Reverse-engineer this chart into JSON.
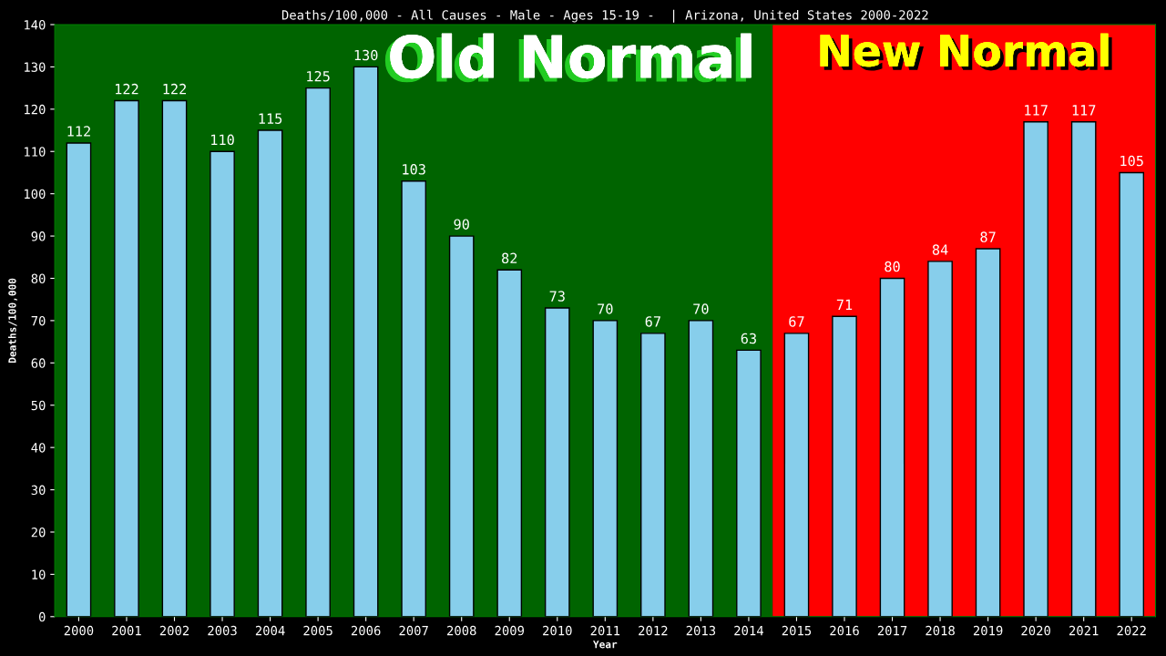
{
  "chart_data": {
    "type": "bar",
    "title": "Deaths/100,000 - All Causes - Male - Ages 15-19 -  | Arizona, United States 2000-2022",
    "xlabel": "Year",
    "ylabel": "Deaths/100,000",
    "categories": [
      "2000",
      "2001",
      "2002",
      "2003",
      "2004",
      "2005",
      "2006",
      "2007",
      "2008",
      "2009",
      "2010",
      "2011",
      "2012",
      "2013",
      "2014",
      "2015",
      "2016",
      "2017",
      "2018",
      "2019",
      "2020",
      "2021",
      "2022"
    ],
    "values": [
      112,
      122,
      122,
      110,
      115,
      125,
      130,
      103,
      90,
      82,
      73,
      70,
      67,
      70,
      63,
      67,
      71,
      80,
      84,
      87,
      117,
      117,
      105
    ],
    "color": "#87ceeb",
    "data_labels": true,
    "ylim": [
      0,
      140
    ],
    "yticks": [
      0,
      10,
      20,
      30,
      40,
      50,
      60,
      70,
      80,
      90,
      100,
      110,
      120,
      130,
      140
    ],
    "grid": false,
    "legend": false,
    "bands": [
      {
        "axis": "x",
        "from": "2000",
        "to": "2014",
        "label": "Old Normal",
        "color": "#006400"
      },
      {
        "axis": "x",
        "from": "2015",
        "to": "2022",
        "label": "New Normal",
        "color": "#ff0000"
      }
    ]
  }
}
